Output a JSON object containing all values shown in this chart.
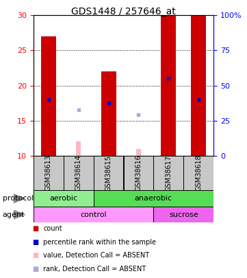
{
  "title": "GDS1448 / 257646_at",
  "samples": [
    "GSM38613",
    "GSM38614",
    "GSM38615",
    "GSM38616",
    "GSM38617",
    "GSM38618"
  ],
  "ylim_left": [
    10,
    30
  ],
  "ylim_right": [
    0,
    100
  ],
  "yticks_left": [
    10,
    15,
    20,
    25,
    30
  ],
  "yticks_right": [
    0,
    25,
    50,
    75,
    100
  ],
  "bar_values": [
    27,
    null,
    22,
    null,
    30,
    30
  ],
  "bar_absent_values": [
    null,
    12,
    null,
    11,
    null,
    null
  ],
  "blue_dot_values": [
    18,
    null,
    17.5,
    null,
    21,
    18
  ],
  "blue_dot_absent_values": [
    null,
    16.5,
    null,
    15.8,
    null,
    null
  ],
  "bar_color": "#CC0000",
  "bar_absent_color": "#FFB6C1",
  "blue_dot_color": "#0000CC",
  "blue_dot_absent_color": "#AAAADD",
  "protocol": [
    {
      "label": "aerobic",
      "start": 0,
      "end": 2,
      "color": "#90EE90"
    },
    {
      "label": "anaerobic",
      "start": 2,
      "end": 6,
      "color": "#55DD55"
    }
  ],
  "agent": [
    {
      "label": "control",
      "start": 0,
      "end": 4,
      "color": "#FF99FF"
    },
    {
      "label": "sucrose",
      "start": 4,
      "end": 6,
      "color": "#EE66EE"
    }
  ],
  "legend": [
    {
      "label": "count",
      "color": "#CC0000"
    },
    {
      "label": "percentile rank within the sample",
      "color": "#0000CC"
    },
    {
      "label": "value, Detection Call = ABSENT",
      "color": "#FFB6C1"
    },
    {
      "label": "rank, Detection Call = ABSENT",
      "color": "#AAAADD"
    }
  ]
}
